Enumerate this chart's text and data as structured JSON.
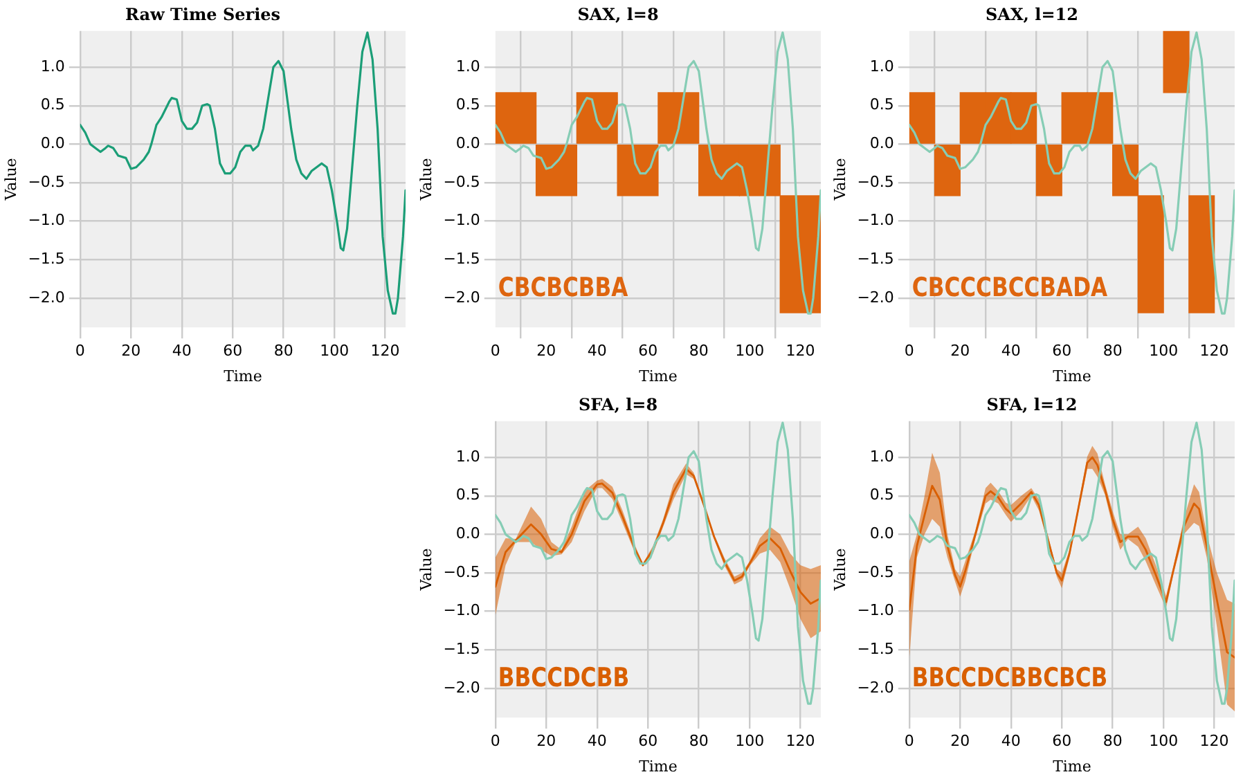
{
  "chart_data": [
    {
      "type": "line",
      "title": "Raw Time Series",
      "xlabel": "Time",
      "ylabel": "Value",
      "xlim": [
        0,
        128
      ],
      "ylim": [
        -2.38,
        1.47
      ],
      "xticks": [
        0,
        20,
        40,
        60,
        80,
        100,
        120
      ],
      "yticks": [
        {
          "value": -2,
          "label": "−2.0"
        },
        {
          "value": -1.5,
          "label": "−1.5"
        },
        {
          "value": -1,
          "label": "−1.0"
        },
        {
          "value": -0.5,
          "label": "−0.5"
        },
        {
          "value": 0,
          "label": "0.0"
        },
        {
          "value": 0.5,
          "label": "0.5"
        },
        {
          "value": 1,
          "label": "1.0"
        }
      ],
      "grid": true,
      "marker": "none",
      "series": [
        {
          "color": "#1b9e77",
          "x": [
            0,
            2,
            4,
            6,
            8,
            10,
            11,
            13,
            15,
            18,
            20,
            22,
            25,
            27,
            28,
            30,
            32,
            35,
            36,
            38,
            40,
            42,
            44,
            46,
            48,
            50,
            51,
            53,
            55,
            57,
            59,
            61,
            63,
            65,
            67,
            68,
            70,
            72,
            74,
            76,
            78,
            80,
            81,
            83,
            85,
            87,
            89,
            91,
            93,
            95,
            97,
            99,
            101,
            102.5,
            103.5,
            105,
            107,
            109,
            111,
            113,
            115,
            117,
            118,
            119,
            121,
            123,
            124,
            125,
            127,
            128
          ],
          "values": [
            0.25,
            0.15,
            0,
            -0.05,
            -0.1,
            -0.05,
            -0.02,
            -0.05,
            -0.15,
            -0.18,
            -0.32,
            -0.3,
            -0.2,
            -0.1,
            0,
            0.25,
            0.35,
            0.55,
            0.6,
            0.58,
            0.3,
            0.2,
            0.2,
            0.28,
            0.5,
            0.52,
            0.5,
            0.2,
            -0.25,
            -0.38,
            -0.38,
            -0.3,
            -0.1,
            -0.02,
            -0.02,
            -0.08,
            -0.02,
            0.2,
            0.6,
            1,
            1.08,
            0.95,
            0.7,
            0.2,
            -0.2,
            -0.38,
            -0.45,
            -0.35,
            -0.3,
            -0.25,
            -0.3,
            -0.6,
            -1,
            -1.35,
            -1.38,
            -1.1,
            -0.3,
            0.5,
            1.2,
            1.45,
            1.1,
            0.2,
            -0.5,
            -1.2,
            -1.9,
            -2.2,
            -2.2,
            -2,
            -1.2,
            -0.6
          ]
        }
      ]
    },
    {
      "type": "line",
      "title": "SAX, l=8",
      "xlabel": "Time",
      "ylabel": "Value",
      "xlim": [
        0,
        128
      ],
      "ylim": [
        -2.38,
        1.47
      ],
      "xticks": [
        0,
        20,
        40,
        60,
        80,
        100,
        120
      ],
      "yticks": [
        {
          "value": -2,
          "label": "−2.0"
        },
        {
          "value": -1.5,
          "label": "−1.5"
        },
        {
          "value": -1,
          "label": "−1.0"
        },
        {
          "value": -0.5,
          "label": "−0.5"
        },
        {
          "value": 0,
          "label": "0.0"
        },
        {
          "value": 0.5,
          "label": "0.5"
        },
        {
          "value": 1,
          "label": "1.0"
        }
      ],
      "grid": true,
      "marker": "none",
      "annotations": [
        "CBCBCBBA"
      ],
      "series": [
        {
          "type": "bar",
          "color": "#de650f",
          "x": [
            8,
            24,
            40,
            56,
            72,
            88,
            104,
            120
          ],
          "base": [
            0,
            -0.67,
            0,
            -0.67,
            0,
            -0.67,
            -0.67,
            -2.19
          ],
          "values": [
            0.67,
            0.67,
            0.67,
            0.67,
            0.67,
            0.67,
            0.67,
            1.52
          ]
        },
        {
          "color": "#86cdb5",
          "x": [
            0,
            2,
            4,
            6,
            8,
            10,
            11,
            13,
            15,
            18,
            20,
            22,
            25,
            27,
            28,
            30,
            32,
            35,
            36,
            38,
            40,
            42,
            44,
            46,
            48,
            50,
            51,
            53,
            55,
            57,
            59,
            61,
            63,
            65,
            67,
            68,
            70,
            72,
            74,
            76,
            78,
            80,
            81,
            83,
            85,
            87,
            89,
            91,
            93,
            95,
            97,
            99,
            101,
            102.5,
            103.5,
            105,
            107,
            109,
            111,
            113,
            115,
            117,
            118,
            119,
            121,
            123,
            124,
            125,
            127,
            128
          ],
          "values": [
            0.25,
            0.15,
            0,
            -0.05,
            -0.1,
            -0.05,
            -0.02,
            -0.05,
            -0.15,
            -0.18,
            -0.32,
            -0.3,
            -0.2,
            -0.1,
            0,
            0.25,
            0.35,
            0.55,
            0.6,
            0.58,
            0.3,
            0.2,
            0.2,
            0.28,
            0.5,
            0.52,
            0.5,
            0.2,
            -0.25,
            -0.38,
            -0.38,
            -0.3,
            -0.1,
            -0.02,
            -0.02,
            -0.08,
            -0.02,
            0.2,
            0.6,
            1,
            1.08,
            0.95,
            0.7,
            0.2,
            -0.2,
            -0.38,
            -0.45,
            -0.35,
            -0.3,
            -0.25,
            -0.3,
            -0.6,
            -1,
            -1.35,
            -1.38,
            -1.1,
            -0.3,
            0.5,
            1.2,
            1.45,
            1.1,
            0.2,
            -0.5,
            -1.2,
            -1.9,
            -2.2,
            -2.2,
            -2,
            -1.2,
            -0.6
          ]
        }
      ]
    },
    {
      "type": "line",
      "title": "SAX, l=12",
      "xlabel": "Time",
      "ylabel": "Value",
      "xlim": [
        0,
        128
      ],
      "ylim": [
        -2.38,
        1.47
      ],
      "xticks": [
        0,
        20,
        40,
        60,
        80,
        100,
        120
      ],
      "yticks": [
        {
          "value": -2,
          "label": "−2.0"
        },
        {
          "value": -1.5,
          "label": "−1.5"
        },
        {
          "value": -1,
          "label": "−1.0"
        },
        {
          "value": -0.5,
          "label": "−0.5"
        },
        {
          "value": 0,
          "label": "0.0"
        },
        {
          "value": 0.5,
          "label": "0.5"
        },
        {
          "value": 1,
          "label": "1.0"
        }
      ],
      "grid": true,
      "marker": "none",
      "annotations": [
        "CBCCCBCCBADA"
      ],
      "series": [
        {
          "type": "bar",
          "color": "#de650f",
          "x": [
            5,
            15,
            25,
            35,
            45,
            55,
            65,
            75,
            85,
            95,
            105,
            115
          ],
          "base": [
            0,
            -0.67,
            0,
            0,
            0,
            -0.67,
            0,
            0,
            -0.67,
            -2.19,
            0.67,
            -2.19
          ],
          "values": [
            0.67,
            0.67,
            0.67,
            0.67,
            0.67,
            0.67,
            0.67,
            0.67,
            0.67,
            1.52,
            0.8,
            1.52
          ]
        },
        {
          "color": "#86cdb5",
          "x": [
            0,
            2,
            4,
            6,
            8,
            10,
            11,
            13,
            15,
            18,
            20,
            22,
            25,
            27,
            28,
            30,
            32,
            35,
            36,
            38,
            40,
            42,
            44,
            46,
            48,
            50,
            51,
            53,
            55,
            57,
            59,
            61,
            63,
            65,
            67,
            68,
            70,
            72,
            74,
            76,
            78,
            80,
            81,
            83,
            85,
            87,
            89,
            91,
            93,
            95,
            97,
            99,
            101,
            102.5,
            103.5,
            105,
            107,
            109,
            111,
            113,
            115,
            117,
            118,
            119,
            121,
            123,
            124,
            125,
            127,
            128
          ],
          "values": [
            0.25,
            0.15,
            0,
            -0.05,
            -0.1,
            -0.05,
            -0.02,
            -0.05,
            -0.15,
            -0.18,
            -0.32,
            -0.3,
            -0.2,
            -0.1,
            0,
            0.25,
            0.35,
            0.55,
            0.6,
            0.58,
            0.3,
            0.2,
            0.2,
            0.28,
            0.5,
            0.52,
            0.5,
            0.2,
            -0.25,
            -0.38,
            -0.38,
            -0.3,
            -0.1,
            -0.02,
            -0.02,
            -0.08,
            -0.02,
            0.2,
            0.6,
            1,
            1.08,
            0.95,
            0.7,
            0.2,
            -0.2,
            -0.38,
            -0.45,
            -0.35,
            -0.3,
            -0.25,
            -0.3,
            -0.6,
            -1,
            -1.35,
            -1.38,
            -1.1,
            -0.3,
            0.5,
            1.2,
            1.45,
            1.1,
            0.2,
            -0.5,
            -1.2,
            -1.9,
            -2.2,
            -2.2,
            -2,
            -1.2,
            -0.6
          ]
        }
      ]
    },
    {
      "type": "line",
      "title": "SFA, l=8",
      "xlabel": "Time",
      "ylabel": "Value",
      "xlim": [
        0,
        128
      ],
      "ylim": [
        -2.38,
        1.47
      ],
      "xticks": [
        0,
        20,
        40,
        60,
        80,
        100,
        120
      ],
      "yticks": [
        {
          "value": -2,
          "label": "−2.0"
        },
        {
          "value": -1.5,
          "label": "−1.5"
        },
        {
          "value": -1,
          "label": "−1.0"
        },
        {
          "value": -0.5,
          "label": "−0.5"
        },
        {
          "value": 0,
          "label": "0.0"
        },
        {
          "value": 0.5,
          "label": "0.5"
        },
        {
          "value": 1,
          "label": "1.0"
        }
      ],
      "grid": true,
      "marker": "none",
      "annotations": [
        "BBCCDCBB"
      ],
      "series": [
        {
          "color": "#d95f02",
          "x": [
            0,
            4,
            8,
            14,
            18,
            22,
            26,
            30,
            35,
            40,
            42,
            46,
            50,
            55,
            58,
            62,
            66,
            70,
            75,
            78,
            82,
            86,
            90,
            94,
            97,
            100,
            104,
            108,
            112,
            116,
            120,
            124,
            128
          ],
          "values": [
            -0.68,
            -0.23,
            -0.08,
            0.13,
            0,
            -0.19,
            -0.23,
            0,
            0.43,
            0.65,
            0.66,
            0.54,
            0.23,
            -0.2,
            -0.4,
            -0.2,
            0.15,
            0.55,
            0.85,
            0.76,
            0.38,
            -0.03,
            -0.35,
            -0.6,
            -0.55,
            -0.38,
            -0.15,
            -0.05,
            -0.18,
            -0.48,
            -0.75,
            -0.9,
            -0.83
          ],
          "lower": [
            -1.05,
            -0.4,
            -0.1,
            -0.1,
            -0.2,
            -0.28,
            -0.26,
            -0.1,
            0.3,
            0.6,
            0.6,
            0.46,
            0.15,
            -0.25,
            -0.42,
            -0.25,
            0.1,
            0.45,
            0.78,
            0.72,
            0.36,
            -0.06,
            -0.4,
            -0.65,
            -0.6,
            -0.41,
            -0.25,
            -0.2,
            -0.36,
            -0.71,
            -1.1,
            -1.35,
            -1.26
          ],
          "upper": [
            -0.3,
            -0.05,
            -0.06,
            0.36,
            0.2,
            -0.1,
            -0.2,
            0.1,
            0.56,
            0.7,
            0.72,
            0.62,
            0.31,
            -0.15,
            -0.38,
            -0.15,
            0.2,
            0.65,
            0.92,
            0.8,
            0.4,
            0,
            -0.3,
            -0.55,
            -0.5,
            -0.35,
            -0.05,
            0.1,
            0,
            -0.25,
            -0.4,
            -0.45,
            -0.4
          ]
        },
        {
          "color": "#86cdb5",
          "x": [
            0,
            2,
            4,
            6,
            8,
            10,
            11,
            13,
            15,
            18,
            20,
            22,
            25,
            27,
            28,
            30,
            32,
            35,
            36,
            38,
            40,
            42,
            44,
            46,
            48,
            50,
            51,
            53,
            55,
            57,
            59,
            61,
            63,
            65,
            67,
            68,
            70,
            72,
            74,
            76,
            78,
            80,
            81,
            83,
            85,
            87,
            89,
            91,
            93,
            95,
            97,
            99,
            101,
            102.5,
            103.5,
            105,
            107,
            109,
            111,
            113,
            115,
            117,
            118,
            119,
            121,
            123,
            124,
            125,
            127,
            128
          ],
          "values": [
            0.25,
            0.15,
            0,
            -0.05,
            -0.1,
            -0.05,
            -0.02,
            -0.05,
            -0.15,
            -0.18,
            -0.32,
            -0.3,
            -0.2,
            -0.1,
            0,
            0.25,
            0.35,
            0.55,
            0.6,
            0.58,
            0.3,
            0.2,
            0.2,
            0.28,
            0.5,
            0.52,
            0.5,
            0.2,
            -0.25,
            -0.38,
            -0.38,
            -0.3,
            -0.1,
            -0.02,
            -0.02,
            -0.08,
            -0.02,
            0.2,
            0.6,
            1,
            1.08,
            0.95,
            0.7,
            0.2,
            -0.2,
            -0.38,
            -0.45,
            -0.35,
            -0.3,
            -0.25,
            -0.3,
            -0.6,
            -1,
            -1.35,
            -1.38,
            -1.1,
            -0.3,
            0.5,
            1.2,
            1.45,
            1.1,
            0.2,
            -0.5,
            -1.2,
            -1.9,
            -2.2,
            -2.2,
            -2,
            -1.2,
            -0.6
          ]
        }
      ]
    },
    {
      "type": "line",
      "title": "SFA, l=12",
      "xlabel": "Time",
      "ylabel": "Value",
      "xlim": [
        0,
        128
      ],
      "ylim": [
        -2.38,
        1.47
      ],
      "xticks": [
        0,
        20,
        40,
        60,
        80,
        100,
        120
      ],
      "yticks": [
        {
          "value": -2,
          "label": "−2.0"
        },
        {
          "value": -1.5,
          "label": "−1.5"
        },
        {
          "value": -1,
          "label": "−1.0"
        },
        {
          "value": -0.5,
          "label": "−0.5"
        },
        {
          "value": 0,
          "label": "0.0"
        },
        {
          "value": 0.5,
          "label": "0.5"
        },
        {
          "value": 1,
          "label": "1.0"
        }
      ],
      "grid": true,
      "marker": "none",
      "annotations": [
        "BBCCDCBBCBCB"
      ],
      "series": [
        {
          "color": "#d95f02",
          "x": [
            0,
            3,
            6,
            9,
            12,
            15,
            18,
            20,
            22,
            26,
            30,
            32,
            35,
            38,
            40,
            44,
            48,
            51,
            54,
            58,
            60,
            63,
            66,
            70,
            72,
            74,
            77,
            80,
            83,
            86,
            90,
            93,
            97,
            101,
            104,
            108,
            112,
            114,
            117,
            121,
            125,
            128
          ],
          "values": [
            -0.98,
            -0.15,
            0.25,
            0.63,
            0.45,
            -0.15,
            -0.53,
            -0.68,
            -0.48,
            0,
            0.5,
            0.56,
            0.48,
            0.33,
            0.27,
            0.4,
            0.55,
            0.38,
            0,
            -0.5,
            -0.6,
            -0.25,
            0.25,
            0.93,
            1,
            0.9,
            0.58,
            0.2,
            -0.1,
            -0.03,
            -0.03,
            -0.2,
            -0.53,
            -0.88,
            -0.45,
            0.1,
            0.4,
            0.33,
            -0.15,
            -0.85,
            -1.53,
            -1.6
          ],
          "lower": [
            -1.61,
            -0.3,
            0,
            0.2,
            0.1,
            -0.3,
            -0.61,
            -0.81,
            -0.61,
            -0.05,
            0.4,
            0.45,
            0.4,
            0.25,
            0.16,
            0.3,
            0.5,
            0.31,
            -0.05,
            -0.55,
            -0.7,
            -0.3,
            0.2,
            0.85,
            0.85,
            0.75,
            0.51,
            0.1,
            -0.2,
            -0.06,
            -0.16,
            -0.35,
            -0.66,
            -0.96,
            -0.5,
            0,
            0.15,
            0.11,
            -0.3,
            -1.2,
            -2.21,
            -2.3
          ],
          "upper": [
            -0.35,
            0,
            0.5,
            1.06,
            0.8,
            0,
            -0.45,
            -0.55,
            -0.35,
            0.05,
            0.6,
            0.67,
            0.56,
            0.41,
            0.38,
            0.5,
            0.6,
            0.45,
            0.05,
            -0.45,
            -0.5,
            -0.2,
            0.3,
            1.01,
            1.15,
            1.05,
            0.65,
            0.3,
            0,
            0,
            0.1,
            -0.05,
            -0.4,
            -0.8,
            -0.4,
            0.2,
            0.65,
            0.55,
            0,
            -0.5,
            -0.85,
            -0.9
          ]
        },
        {
          "color": "#86cdb5",
          "x": [
            0,
            2,
            4,
            6,
            8,
            10,
            11,
            13,
            15,
            18,
            20,
            22,
            25,
            27,
            28,
            30,
            32,
            35,
            36,
            38,
            40,
            42,
            44,
            46,
            48,
            50,
            51,
            53,
            55,
            57,
            59,
            61,
            63,
            65,
            67,
            68,
            70,
            72,
            74,
            76,
            78,
            80,
            81,
            83,
            85,
            87,
            89,
            91,
            93,
            95,
            97,
            99,
            101,
            102.5,
            103.5,
            105,
            107,
            109,
            111,
            113,
            115,
            117,
            118,
            119,
            121,
            123,
            124,
            125,
            127,
            128
          ],
          "values": [
            0.25,
            0.15,
            0,
            -0.05,
            -0.1,
            -0.05,
            -0.02,
            -0.05,
            -0.15,
            -0.18,
            -0.32,
            -0.3,
            -0.2,
            -0.1,
            0,
            0.25,
            0.35,
            0.55,
            0.6,
            0.58,
            0.3,
            0.2,
            0.2,
            0.28,
            0.5,
            0.52,
            0.5,
            0.2,
            -0.25,
            -0.38,
            -0.38,
            -0.3,
            -0.1,
            -0.02,
            -0.02,
            -0.08,
            -0.02,
            0.2,
            0.6,
            1,
            1.08,
            0.95,
            0.7,
            0.2,
            -0.2,
            -0.38,
            -0.45,
            -0.35,
            -0.3,
            -0.25,
            -0.3,
            -0.6,
            -1,
            -1.35,
            -1.38,
            -1.1,
            -0.3,
            0.5,
            1.2,
            1.45,
            1.1,
            0.2,
            -0.5,
            -1.2,
            -1.9,
            -2.2,
            -2.2,
            -2,
            -1.2,
            -0.6
          ]
        }
      ]
    }
  ]
}
